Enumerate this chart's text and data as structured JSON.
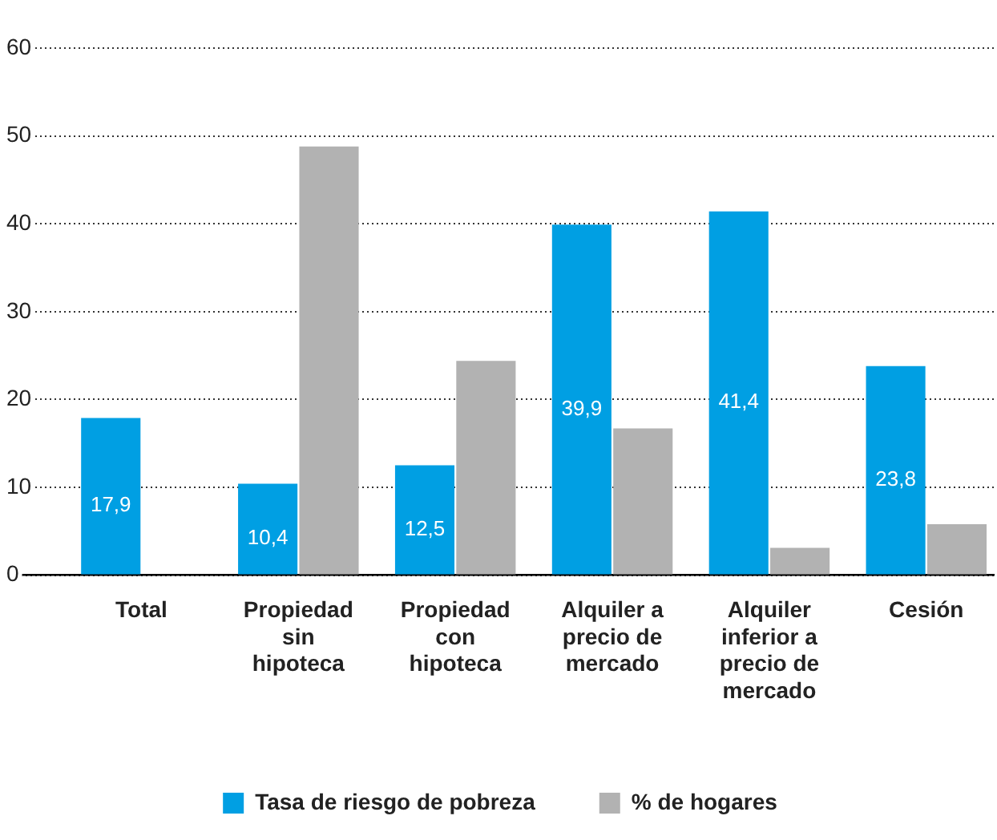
{
  "chart_data": {
    "type": "bar",
    "categories": [
      "Total",
      "Propiedad sin hipoteca",
      "Propiedad con hipoteca",
      "Alquiler a precio de mercado",
      "Alquiler inferior a precio de mercado",
      "Cesión"
    ],
    "series": [
      {
        "name": "Tasa de riesgo de pobreza",
        "color": "#009fe3",
        "values": [
          17.9,
          10.4,
          12.5,
          39.9,
          41.4,
          23.8
        ],
        "value_labels": [
          "17,9",
          "10,4",
          "12,5",
          "39,9",
          "41,4",
          "23,8"
        ]
      },
      {
        "name": "% de hogares",
        "color": "#b2b2b2",
        "values": [
          null,
          48.8,
          24.4,
          16.7,
          3.1,
          5.8
        ]
      }
    ],
    "ylim": [
      0,
      60
    ],
    "yticks": [
      0,
      10,
      20,
      30,
      40,
      50,
      60
    ],
    "grid": "y",
    "legend": "bottom"
  }
}
